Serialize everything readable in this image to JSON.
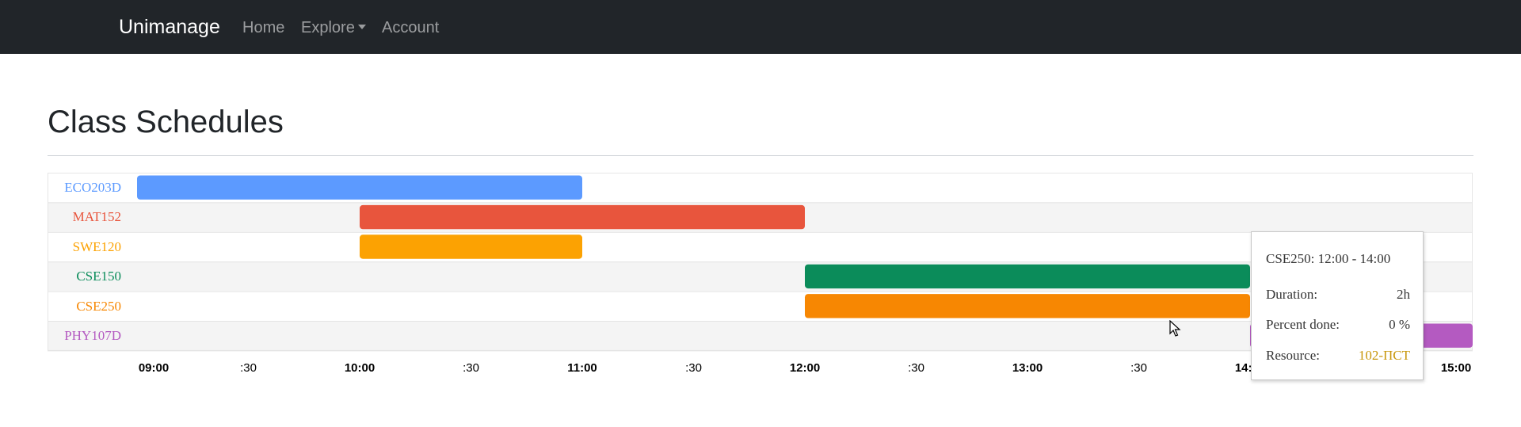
{
  "nav": {
    "brand": "Unimanage",
    "home": "Home",
    "explore": "Explore",
    "account": "Account"
  },
  "page": {
    "title": "Class Schedules"
  },
  "chart_data": {
    "type": "gantt",
    "x_ticks": [
      "09:00",
      ":30",
      "10:00",
      ":30",
      "11:00",
      ":30",
      "12:00",
      ":30",
      "13:00",
      ":30",
      "14:00",
      "15:00"
    ],
    "tasks": [
      {
        "name": "ECO203D",
        "start": "09:00",
        "end": "11:00",
        "color": "#5c9aff"
      },
      {
        "name": "MAT152",
        "start": "10:00",
        "end": "12:00",
        "color": "#e8553d"
      },
      {
        "name": "SWE120",
        "start": "10:00",
        "end": "11:00",
        "color": "#fca202"
      },
      {
        "name": "CSE150",
        "start": "12:00",
        "end": "14:00",
        "color": "#0b8c5a"
      },
      {
        "name": "CSE250",
        "start": "12:00",
        "end": "14:00",
        "color": "#f78702"
      },
      {
        "name": "PHY107D",
        "start": "14:00",
        "end": "15:00",
        "color": "#b45ac1"
      }
    ]
  },
  "tooltip": {
    "title": "CSE250: 12:00 - 14:00",
    "duration_label": "Duration:",
    "duration_value": "2h",
    "percent_label": "Percent done:",
    "percent_value": "0 %",
    "resource_label": "Resource:",
    "resource_value": "102-ПСТ"
  },
  "colors": {
    "navbar": "#212529",
    "resource": "#c8960a",
    "row_alt": "#f4f4f4"
  }
}
